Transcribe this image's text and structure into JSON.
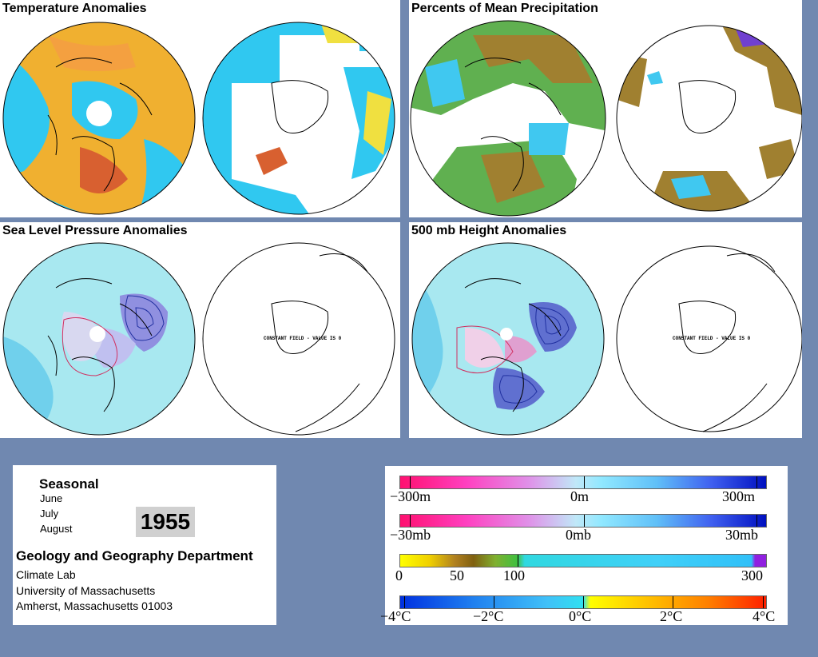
{
  "panels": {
    "temperature": {
      "title": "Temperature Anomalies"
    },
    "precipitation": {
      "title": "Percents of Mean Precipitation"
    },
    "slp": {
      "title": "Sea Level Pressure Anomalies",
      "south_note": "CONSTANT FIELD - VALUE IS 0"
    },
    "height": {
      "title": "500 mb Height Anomalies",
      "south_note": "CONSTANT FIELD - VALUE IS 0"
    }
  },
  "info": {
    "period_label": "Seasonal",
    "months": [
      "June",
      "July",
      "August"
    ],
    "year": "1955",
    "department": "Geology and Geography Department",
    "lab": "Climate Lab",
    "university": "University of Massachusetts",
    "address": "Amherst, Massachusetts 01003"
  },
  "legend": {
    "height_scale": {
      "min": "−300m",
      "mid": "0m",
      "max": "300m"
    },
    "pressure_scale": {
      "min": "−30mb",
      "mid": "0mb",
      "max": "30mb"
    },
    "precip_scale": {
      "labels": [
        "0",
        "50",
        "100",
        "300"
      ]
    },
    "temp_scale": {
      "labels": [
        "−4°C",
        "−2°C",
        "0°C",
        "2°C",
        "4°C"
      ]
    }
  },
  "colors": {
    "background": "#7088b0",
    "temp_warm": "#f0b030",
    "temp_hot": "#d85020",
    "temp_cool": "#30c8f0",
    "precip_dry": "#a08030",
    "precip_wet": "#40c8f0",
    "contour_pos": "#d03060",
    "contour_neg": "#2030a0"
  }
}
